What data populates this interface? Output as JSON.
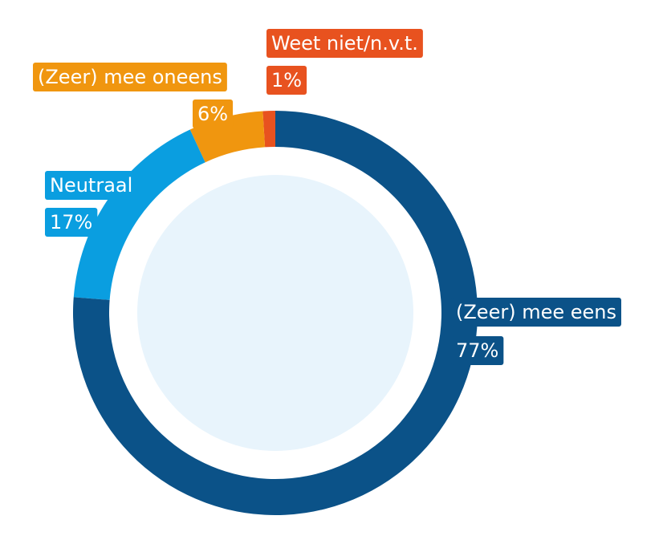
{
  "chart_data": {
    "type": "donut",
    "categories": [
      "(Zeer) mee eens",
      "Neutraal",
      "(Zeer) mee oneens",
      "Weet niet/n.v.t."
    ],
    "values": [
      77,
      17,
      6,
      1
    ],
    "value_labels": [
      "77%",
      "17%",
      "6%",
      "1%"
    ],
    "colors": [
      "#0b5288",
      "#0a9ee0",
      "#f0960f",
      "#e8521f"
    ]
  }
}
